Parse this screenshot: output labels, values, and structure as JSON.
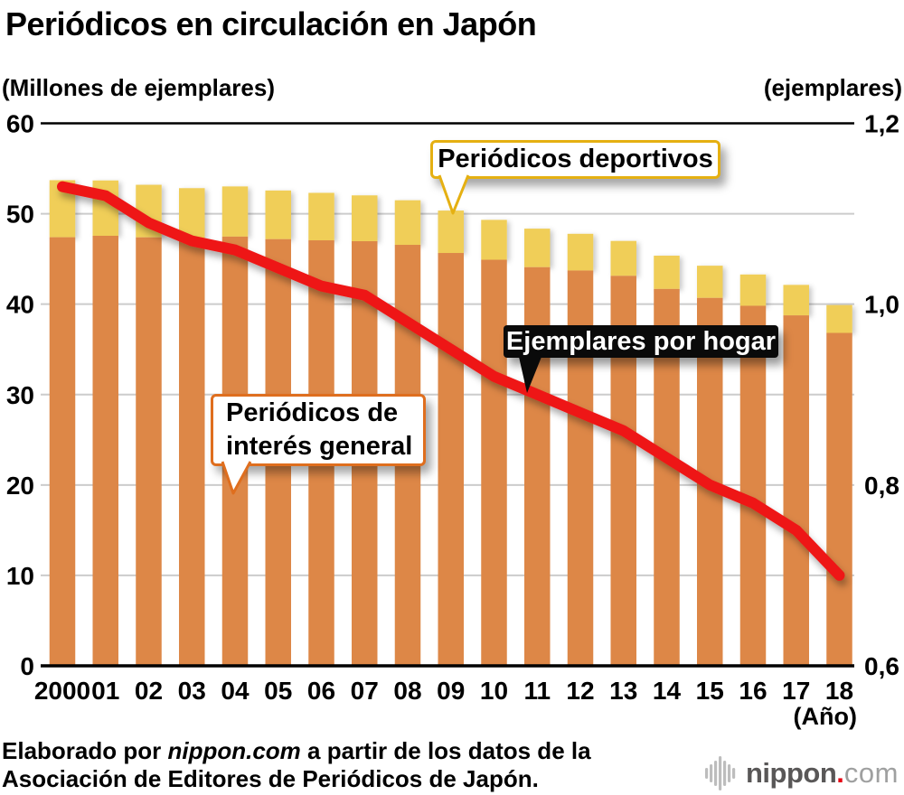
{
  "title": "Periódicos en circulación en Japón",
  "left_axis_unit": "(Millones de ejemplares)",
  "right_axis_unit": "(ejemplares)",
  "x_axis_note": "(Año)",
  "callouts": {
    "sports": "Periódicos deportivos",
    "general_line1": "Periódicos de",
    "general_line2": "interés general",
    "per_household": "Ejemplares por hogar"
  },
  "footer": {
    "line1_pre": "Elaborado por ",
    "line1_italic": "nippon.com",
    "line1_post": " a partir de los datos de la",
    "line2": "Asociación de Editores de Periódicos de Japón."
  },
  "logo": {
    "icon": "soundwave-bars-icon",
    "name_bold": "nippon",
    "dot": ".",
    "name_light": "com"
  },
  "colors": {
    "bar_general": "#DD8747",
    "bar_sports": "#F0CE58",
    "line_household": "#EE1716",
    "sports_border": "#E5B012",
    "general_border": "#DF6E1E",
    "household_bg": "#0A0A0A",
    "gridline": "#CCCCCC",
    "axis_line": "#000000",
    "logo_gray": "#595757",
    "logo_light": "#9FA0A0",
    "logo_red": "#E60012"
  },
  "chart_data": {
    "type": "bar",
    "stacked": true,
    "grid": true,
    "title": "Periódicos en circulación en Japón",
    "categories": [
      "2000",
      "01",
      "02",
      "03",
      "04",
      "05",
      "06",
      "07",
      "08",
      "09",
      "10",
      "11",
      "12",
      "13",
      "14",
      "15",
      "16",
      "17",
      "18"
    ],
    "series": [
      {
        "name": "Periódicos de interés general",
        "type": "bar",
        "axis": "left",
        "color": "#DD8747",
        "values": [
          47.4,
          47.56,
          47.39,
          47.28,
          47.47,
          47.19,
          47.06,
          46.96,
          46.56,
          45.66,
          44.91,
          44.09,
          43.72,
          43.13,
          41.68,
          40.69,
          39.82,
          38.76,
          36.82
        ]
      },
      {
        "name": "Periódicos deportivos",
        "type": "bar",
        "axis": "left",
        "color": "#F0CE58",
        "values": [
          6.31,
          6.12,
          5.81,
          5.55,
          5.55,
          5.38,
          5.25,
          5.07,
          4.93,
          4.69,
          4.41,
          4.26,
          4.06,
          3.86,
          3.68,
          3.56,
          3.46,
          3.37,
          3.08
        ]
      },
      {
        "name": "Ejemplares por hogar",
        "type": "line",
        "axis": "right",
        "color": "#EE1716",
        "values": [
          1.13,
          1.12,
          1.09,
          1.07,
          1.06,
          1.04,
          1.02,
          1.01,
          0.98,
          0.95,
          0.92,
          0.9,
          0.88,
          0.86,
          0.83,
          0.8,
          0.78,
          0.75,
          0.7
        ]
      }
    ],
    "left_axis": {
      "label": "(Millones de ejemplares)",
      "range": [
        0,
        60
      ],
      "ticks": [
        0,
        10,
        20,
        30,
        40,
        50,
        60
      ]
    },
    "right_axis": {
      "label": "(ejemplares)",
      "range": [
        0.6,
        1.2
      ],
      "ticks": [
        {
          "value": 1.2,
          "label": "1,2"
        },
        {
          "value": 1.0,
          "label": "1,0"
        },
        {
          "value": 0.8,
          "label": "0,8"
        },
        {
          "value": 0.6,
          "label": "0,6"
        }
      ]
    },
    "x_axis_note": "(Año)"
  }
}
